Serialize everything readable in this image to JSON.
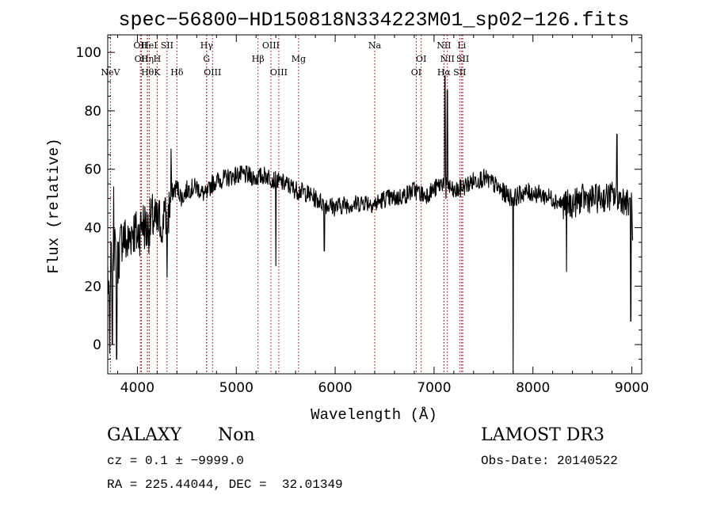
{
  "chart_data": {
    "type": "line",
    "title": "spec−56800−HD150818N334223M01_sp02−126.fits",
    "xlabel": "Wavelength (Å)",
    "ylabel": "Flux (relative)",
    "xlim": [
      3700,
      9100
    ],
    "ylim": [
      -10,
      106
    ],
    "xticks": [
      {
        "v": 4000,
        "label": "4000"
      },
      {
        "v": 5000,
        "label": "5000"
      },
      {
        "v": 6000,
        "label": "6000"
      },
      {
        "v": 7000,
        "label": "7000"
      },
      {
        "v": 8000,
        "label": "8000"
      },
      {
        "v": 9000,
        "label": "9000"
      }
    ],
    "yticks": [
      {
        "v": 0,
        "label": "0"
      },
      {
        "v": 20,
        "label": "20"
      },
      {
        "v": 40,
        "label": "40"
      },
      {
        "v": 60,
        "label": "60"
      },
      {
        "v": 80,
        "label": "80"
      },
      {
        "v": 100,
        "label": "100"
      }
    ],
    "line_color": "#000000",
    "marker_color": "#8b0000",
    "series": [
      {
        "name": "flux",
        "anchors": [
          [
            3700,
            25
          ],
          [
            3720,
            5
          ],
          [
            3750,
            35
          ],
          [
            3800,
            28
          ],
          [
            3850,
            38
          ],
          [
            3900,
            34
          ],
          [
            3950,
            40
          ],
          [
            4000,
            37
          ],
          [
            4050,
            42
          ],
          [
            4100,
            39
          ],
          [
            4150,
            43
          ],
          [
            4200,
            41
          ],
          [
            4250,
            44
          ],
          [
            4300,
            42
          ],
          [
            4350,
            52
          ],
          [
            4400,
            54
          ],
          [
            4450,
            50
          ],
          [
            4500,
            53
          ],
          [
            4600,
            54
          ],
          [
            4650,
            52
          ],
          [
            4700,
            51
          ],
          [
            4750,
            55
          ],
          [
            4800,
            56
          ],
          [
            4900,
            57
          ],
          [
            5000,
            58
          ],
          [
            5100,
            58
          ],
          [
            5200,
            57
          ],
          [
            5300,
            58
          ],
          [
            5400,
            56
          ],
          [
            5500,
            55
          ],
          [
            5600,
            53
          ],
          [
            5700,
            52
          ],
          [
            5800,
            50
          ],
          [
            5900,
            48
          ],
          [
            6000,
            47
          ],
          [
            6100,
            48
          ],
          [
            6200,
            48
          ],
          [
            6300,
            49
          ],
          [
            6400,
            48
          ],
          [
            6500,
            50
          ],
          [
            6600,
            50
          ],
          [
            6700,
            51
          ],
          [
            6800,
            53
          ],
          [
            6900,
            51
          ],
          [
            7000,
            53
          ],
          [
            7100,
            56
          ],
          [
            7200,
            52
          ],
          [
            7300,
            54
          ],
          [
            7400,
            56
          ],
          [
            7500,
            57
          ],
          [
            7600,
            55
          ],
          [
            7700,
            52
          ],
          [
            7800,
            50
          ],
          [
            7900,
            52
          ],
          [
            8000,
            52
          ],
          [
            8100,
            51
          ],
          [
            8200,
            50
          ],
          [
            8300,
            48
          ],
          [
            8400,
            48
          ],
          [
            8500,
            50
          ],
          [
            8600,
            50
          ],
          [
            8700,
            50
          ],
          [
            8800,
            51
          ],
          [
            8900,
            50
          ],
          [
            9000,
            47
          ],
          [
            9010,
            30
          ]
        ],
        "features": [
          {
            "x": 3720,
            "y": -3
          },
          {
            "x": 3735,
            "y": 35
          },
          {
            "x": 3745,
            "y": 0
          },
          {
            "x": 3760,
            "y": 54
          },
          {
            "x": 3790,
            "y": -5
          },
          {
            "x": 4250,
            "y": 35
          },
          {
            "x": 4270,
            "y": 49
          },
          {
            "x": 4300,
            "y": 23
          },
          {
            "x": 4340,
            "y": 67
          },
          {
            "x": 5400,
            "y": 27
          },
          {
            "x": 5890,
            "y": 32
          },
          {
            "x": 7110,
            "y": 92
          },
          {
            "x": 7120,
            "y": 50
          },
          {
            "x": 7135,
            "y": 87
          },
          {
            "x": 7800,
            "y": -10
          },
          {
            "x": 8340,
            "y": 25
          },
          {
            "x": 8850,
            "y": 72
          },
          {
            "x": 8990,
            "y": 8
          }
        ]
      }
    ],
    "lines": [
      {
        "x": 3727,
        "label": "NeV",
        "row": 3
      },
      {
        "x": 4030,
        "label": "OII",
        "row": 1
      },
      {
        "x": 4040,
        "label": "OII",
        "row": 2
      },
      {
        "x": 4100,
        "label": "Hη",
        "row": 2
      },
      {
        "x": 4102,
        "label": "Hθ",
        "row": 3
      },
      {
        "x": 4120,
        "label": "HeI",
        "row": 1
      },
      {
        "x": 4200,
        "label": "H",
        "row": 2
      },
      {
        "x": 4200,
        "label": "K",
        "row": 3
      },
      {
        "x": 4300,
        "label": "SII",
        "row": 1
      },
      {
        "x": 4400,
        "label": "Hδ",
        "row": 3
      },
      {
        "x": 4700,
        "label": "Hγ",
        "row": 1
      },
      {
        "x": 4700,
        "label": "G",
        "row": 2
      },
      {
        "x": 4760,
        "label": "OIII",
        "row": 3
      },
      {
        "x": 5220,
        "label": "Hβ",
        "row": 2
      },
      {
        "x": 5350,
        "label": "OIII",
        "row": 1
      },
      {
        "x": 5430,
        "label": "OIII",
        "row": 3
      },
      {
        "x": 5630,
        "label": "Mg",
        "row": 2
      },
      {
        "x": 6400,
        "label": "Na",
        "row": 1
      },
      {
        "x": 6870,
        "label": "OI",
        "row": 2
      },
      {
        "x": 6820,
        "label": "OI",
        "row": 3
      },
      {
        "x": 7100,
        "label": "NII",
        "row": 1
      },
      {
        "x": 7135,
        "label": "NII",
        "row": 2
      },
      {
        "x": 7100,
        "label": "Hα",
        "row": 3
      },
      {
        "x": 7280,
        "label": "Li",
        "row": 1
      },
      {
        "x": 7290,
        "label": "SII",
        "row": 2
      },
      {
        "x": 7260,
        "label": "SII",
        "row": 3
      }
    ]
  },
  "info": {
    "class_label": "GALAXY",
    "subclass_label": "Non",
    "survey_label": "LAMOST DR3",
    "cz_text": "cz = 0.1 ± −9999.0",
    "obs_date_text": "Obs-Date: 20140522",
    "radec_text": "RA = 225.44044, DEC =  32.01349"
  }
}
